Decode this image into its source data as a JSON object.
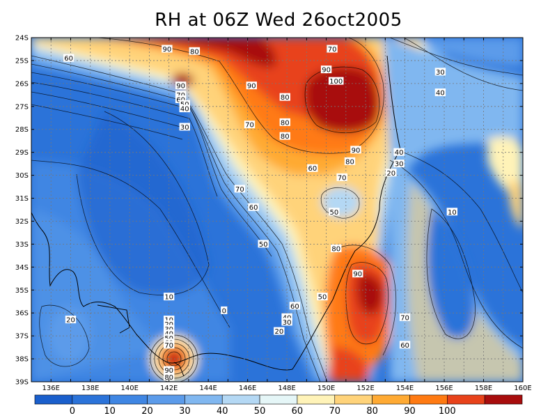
{
  "title": "RH at 06Z Wed 26oct2005",
  "lat_ticks": [
    "24S",
    "25S",
    "26S",
    "27S",
    "28S",
    "29S",
    "30S",
    "31S",
    "32S",
    "33S",
    "34S",
    "35S",
    "36S",
    "37S",
    "38S",
    "39S"
  ],
  "lon_ticks": [
    "136E",
    "138E",
    "140E",
    "142E",
    "144E",
    "146E",
    "148E",
    "150E",
    "152E",
    "154E",
    "156E",
    "158E",
    "160E"
  ],
  "contour_labels": [
    {
      "text": "60",
      "lon": 136.9,
      "lat": -24.9
    },
    {
      "text": "90",
      "lon": 141.9,
      "lat": -24.5
    },
    {
      "text": "80",
      "lon": 143.3,
      "lat": -24.6
    },
    {
      "text": "70",
      "lon": 150.3,
      "lat": -24.5
    },
    {
      "text": "90",
      "lon": 150.0,
      "lat": -25.4
    },
    {
      "text": "100",
      "lon": 150.5,
      "lat": -25.9
    },
    {
      "text": "30",
      "lon": 155.8,
      "lat": -25.5
    },
    {
      "text": "40",
      "lon": 155.8,
      "lat": -26.4
    },
    {
      "text": "90",
      "lon": 142.6,
      "lat": -26.1
    },
    {
      "text": "70",
      "lon": 142.6,
      "lat": -26.5
    },
    {
      "text": "60",
      "lon": 142.6,
      "lat": -26.7
    },
    {
      "text": "50",
      "lon": 142.8,
      "lat": -26.9
    },
    {
      "text": "40",
      "lon": 142.8,
      "lat": -27.1
    },
    {
      "text": "90",
      "lon": 146.2,
      "lat": -26.1
    },
    {
      "text": "80",
      "lon": 147.9,
      "lat": -26.6
    },
    {
      "text": "70",
      "lon": 146.1,
      "lat": -27.8
    },
    {
      "text": "80",
      "lon": 147.9,
      "lat": -27.7
    },
    {
      "text": "30",
      "lon": 142.8,
      "lat": -27.9
    },
    {
      "text": "80",
      "lon": 147.9,
      "lat": -28.3
    },
    {
      "text": "90",
      "lon": 151.5,
      "lat": -28.9
    },
    {
      "text": "40",
      "lon": 153.7,
      "lat": -29.0
    },
    {
      "text": "80",
      "lon": 151.2,
      "lat": -29.4
    },
    {
      "text": "30",
      "lon": 153.7,
      "lat": -29.5
    },
    {
      "text": "60",
      "lon": 149.3,
      "lat": -29.7
    },
    {
      "text": "20",
      "lon": 153.3,
      "lat": -29.9
    },
    {
      "text": "70",
      "lon": 150.8,
      "lat": -30.1
    },
    {
      "text": "70",
      "lon": 145.6,
      "lat": -30.6
    },
    {
      "text": "60",
      "lon": 146.3,
      "lat": -31.4
    },
    {
      "text": "50",
      "lon": 150.4,
      "lat": -31.6
    },
    {
      "text": "10",
      "lon": 156.4,
      "lat": -31.6
    },
    {
      "text": "50",
      "lon": 146.8,
      "lat": -33.0
    },
    {
      "text": "80",
      "lon": 150.5,
      "lat": -33.2
    },
    {
      "text": "90",
      "lon": 151.6,
      "lat": -34.3
    },
    {
      "text": "10",
      "lon": 142.0,
      "lat": -35.3
    },
    {
      "text": "50",
      "lon": 149.8,
      "lat": -35.3
    },
    {
      "text": "60",
      "lon": 148.4,
      "lat": -35.7
    },
    {
      "text": "0",
      "lon": 144.8,
      "lat": -35.9
    },
    {
      "text": "40",
      "lon": 148.0,
      "lat": -36.2
    },
    {
      "text": "30",
      "lon": 148.0,
      "lat": -36.4
    },
    {
      "text": "70",
      "lon": 154.0,
      "lat": -36.2
    },
    {
      "text": "20",
      "lon": 137.0,
      "lat": -36.3
    },
    {
      "text": "10",
      "lon": 142.0,
      "lat": -36.3
    },
    {
      "text": "20",
      "lon": 142.0,
      "lat": -36.5
    },
    {
      "text": "30",
      "lon": 142.0,
      "lat": -36.7
    },
    {
      "text": "20",
      "lon": 147.6,
      "lat": -36.8
    },
    {
      "text": "40",
      "lon": 142.0,
      "lat": -36.9
    },
    {
      "text": "50",
      "lon": 142.0,
      "lat": -37.1
    },
    {
      "text": "60",
      "lon": 142.0,
      "lat": -37.3
    },
    {
      "text": "60",
      "lon": 154.0,
      "lat": -37.4
    },
    {
      "text": "70",
      "lon": 142.0,
      "lat": -37.4
    },
    {
      "text": "90",
      "lon": 142.0,
      "lat": -38.5
    },
    {
      "text": "80",
      "lon": 142.0,
      "lat": -38.8
    }
  ],
  "colorbar": {
    "labels": [
      "0",
      "10",
      "20",
      "30",
      "40",
      "50",
      "60",
      "70",
      "80",
      "90",
      "100"
    ],
    "colors": [
      "#1a5fcc",
      "#2b73d9",
      "#3f86e3",
      "#5b9bea",
      "#80b7f0",
      "#b4d8f4",
      "#e5f6f7",
      "#fff3b8",
      "#ffd37a",
      "#ffaa33",
      "#ff7a12",
      "#e8421a",
      "#a80d0d"
    ]
  }
}
